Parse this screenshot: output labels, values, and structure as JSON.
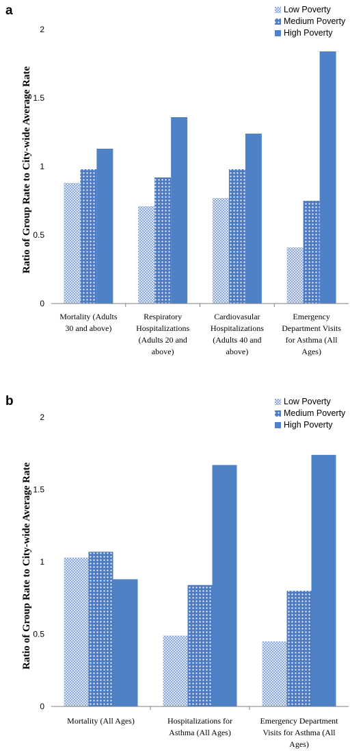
{
  "colors": {
    "low": "#a9bde0",
    "medium": "#4f7bc2",
    "high": "#4f81c7",
    "axis": "#7f7f7f"
  },
  "chart_data": [
    {
      "panel": "a",
      "type": "bar",
      "ylabel": "Ratio of Group Rate to City-wide Average Rate",
      "ylim": [
        0,
        2
      ],
      "yticks": [
        "0",
        "0.5",
        "1",
        "1.5",
        "2"
      ],
      "legend_position": "top-right",
      "categories": [
        [
          "Mortality (Adults",
          "30 and above)"
        ],
        [
          "Respiratory",
          "Hospitalizations",
          "(Adults 20 and",
          "above)"
        ],
        [
          "Cardiovasular",
          "Hospitalizations",
          "(Adults 40 and",
          "above)"
        ],
        [
          "Emergency",
          "Department Visits",
          "for  Asthma (All",
          "Ages)"
        ]
      ],
      "series": [
        {
          "name": "Low Poverty",
          "key": "low",
          "values": [
            0.88,
            0.71,
            0.77,
            0.41
          ]
        },
        {
          "name": "Medium Poverty",
          "key": "medium",
          "values": [
            0.98,
            0.92,
            0.98,
            0.75
          ]
        },
        {
          "name": "High Poverty",
          "key": "high",
          "values": [
            1.13,
            1.36,
            1.24,
            1.84
          ]
        }
      ]
    },
    {
      "panel": "b",
      "type": "bar",
      "ylabel": "Ratio of Group Rate to City-wide Average Rate",
      "ylim": [
        0,
        2
      ],
      "yticks": [
        "0",
        "0.5",
        "1",
        "1.5",
        "2"
      ],
      "legend_position": "top-right",
      "categories": [
        [
          "Mortality (All Ages)"
        ],
        [
          "Hospitalizations for",
          "Asthma (All Ages)"
        ],
        [
          "Emergency Department",
          "Visits for Asthma (All",
          "Ages)"
        ]
      ],
      "series": [
        {
          "name": "Low Poverty",
          "key": "low",
          "values": [
            1.03,
            0.49,
            0.45
          ]
        },
        {
          "name": "Medium Poverty",
          "key": "medium",
          "values": [
            1.07,
            0.84,
            0.8
          ]
        },
        {
          "name": "High Poverty",
          "key": "high",
          "values": [
            0.88,
            1.67,
            1.74
          ]
        }
      ]
    }
  ]
}
